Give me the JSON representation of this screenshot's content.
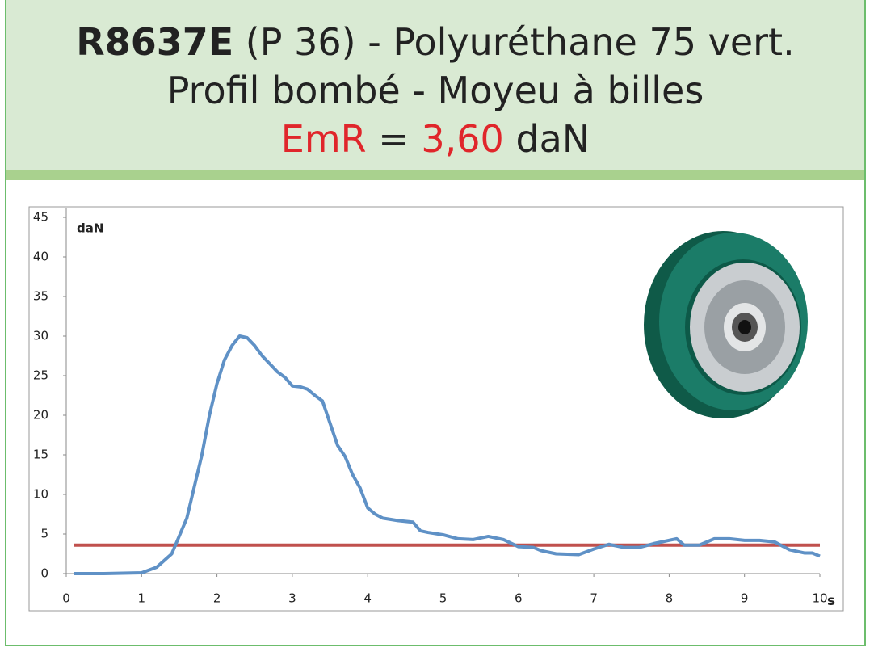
{
  "header": {
    "code": "R8637E",
    "title": "(P 36) - Polyuréthane 75 vert.",
    "subtitle": "Profil bombé - Moyeu à billes"
  },
  "chart_data": {
    "type": "line",
    "y_label": "daN",
    "x_label": "s",
    "x": [
      0.1,
      0.5,
      1.0,
      1.2,
      1.4,
      1.6,
      1.8,
      1.9,
      2.0,
      2.1,
      2.2,
      2.3,
      2.4,
      2.5,
      2.6,
      2.7,
      2.8,
      2.9,
      3.0,
      3.1,
      3.2,
      3.3,
      3.4,
      3.5,
      3.6,
      3.7,
      3.8,
      3.9,
      4.0,
      4.1,
      4.2,
      4.4,
      4.6,
      4.7,
      4.8,
      5.0,
      5.2,
      5.4,
      5.6,
      5.8,
      6.0,
      6.2,
      6.3,
      6.5,
      6.8,
      7.0,
      7.2,
      7.4,
      7.6,
      7.8,
      8.0,
      8.1,
      8.2,
      8.4,
      8.6,
      8.8,
      9.0,
      9.2,
      9.4,
      9.6,
      9.8,
      9.9,
      10.0
    ],
    "series": [
      {
        "color": "#5f91c6",
        "values": [
          0,
          0,
          0.1,
          0.8,
          2.5,
          7,
          15,
          20,
          24,
          27,
          28.8,
          30,
          29.8,
          28.8,
          27.5,
          26.5,
          25.5,
          24.8,
          23.7,
          23.6,
          23.3,
          22.5,
          21.8,
          19,
          16.2,
          14.8,
          12.5,
          10.8,
          8.3,
          7.5,
          7,
          6.7,
          6.5,
          5.4,
          5.2,
          4.9,
          4.4,
          4.3,
          4.7,
          4.3,
          3.4,
          3.3,
          2.9,
          2.5,
          2.4,
          3.1,
          3.7,
          3.3,
          3.3,
          3.8,
          4.2,
          4.4,
          3.6,
          3.6,
          4.4,
          4.4,
          4.2,
          4.2,
          4,
          3.0,
          2.6,
          2.6,
          2.2
        ]
      }
    ],
    "reference": {
      "label": "EmR",
      "relation": "=",
      "value": 3.6,
      "value_label": "3,60",
      "unit": "daN",
      "color": "#c0504d",
      "label_color": "#e0262b"
    },
    "xlim": [
      0,
      10
    ],
    "xticks": [
      0,
      1,
      2,
      3,
      4,
      5,
      6,
      7,
      8,
      9,
      10
    ],
    "ylim": [
      0,
      45
    ],
    "yticks": [
      0,
      5,
      10,
      15,
      20,
      25,
      30,
      35,
      40,
      45
    ]
  }
}
